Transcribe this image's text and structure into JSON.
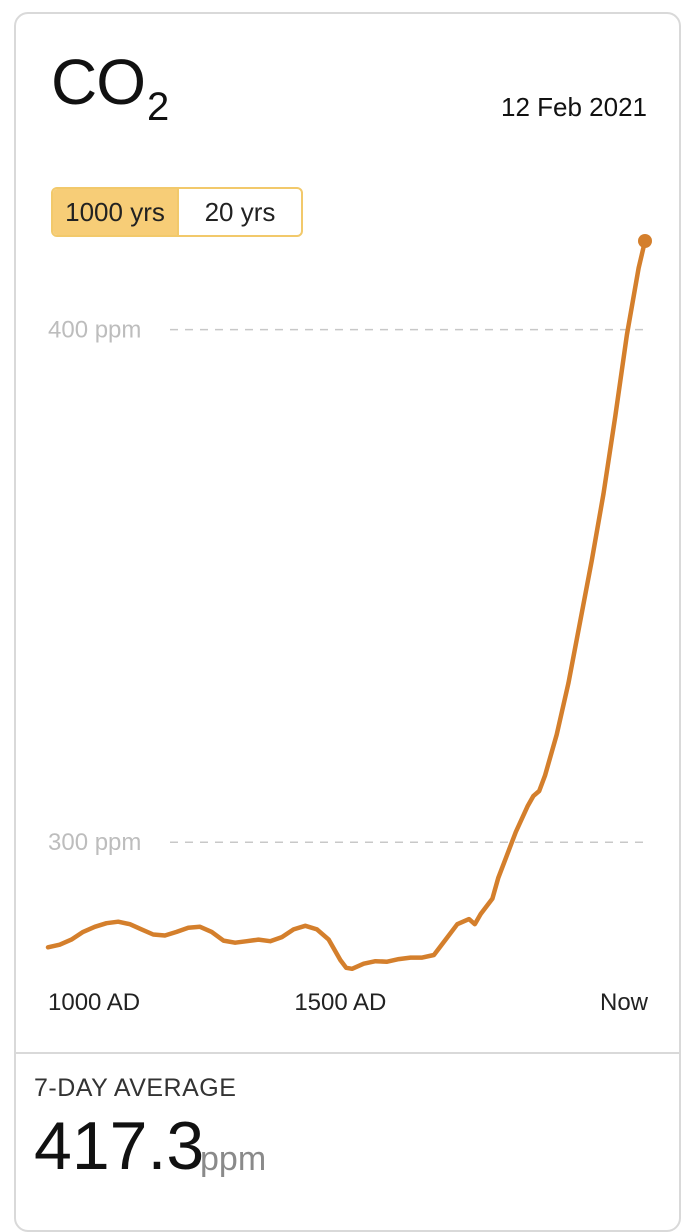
{
  "header": {
    "title_main": "CO",
    "title_sub": "2",
    "date": "12 Feb 2021"
  },
  "range_toggle": {
    "options": [
      "1000 yrs",
      "20 yrs"
    ],
    "selected": "1000 yrs"
  },
  "summary": {
    "label": "7-DAY AVERAGE",
    "value": "417.3",
    "unit": "ppm"
  },
  "colors": {
    "line": "#d47f2c",
    "gridline": "#c8c8c8",
    "tick_text": "#bdbdbd",
    "toggle_active": "#f7cd77"
  },
  "chart_data": {
    "type": "line",
    "title": "",
    "xlabel": "",
    "ylabel": "",
    "x_ticks": [
      {
        "x": 1000,
        "label": "1000 AD"
      },
      {
        "x": 1500,
        "label": "1500 AD"
      },
      {
        "x": 2021,
        "label": "Now"
      }
    ],
    "y_ticks": [
      {
        "y": 300,
        "label": "300 ppm"
      },
      {
        "y": 400,
        "label": "400 ppm"
      }
    ],
    "xlim": [
      1000,
      2021
    ],
    "ylim": [
      278,
      417.3
    ],
    "grid": "dashed horizontal at y ticks",
    "series": [
      {
        "points": [
          [
            1000,
            279.5
          ],
          [
            1020,
            280
          ],
          [
            1040,
            281
          ],
          [
            1060,
            282.5
          ],
          [
            1080,
            283.5
          ],
          [
            1100,
            284.2
          ],
          [
            1120,
            284.5
          ],
          [
            1140,
            284
          ],
          [
            1160,
            283
          ],
          [
            1180,
            282
          ],
          [
            1200,
            281.8
          ],
          [
            1220,
            282.5
          ],
          [
            1240,
            283.3
          ],
          [
            1260,
            283.5
          ],
          [
            1280,
            282.5
          ],
          [
            1300,
            280.8
          ],
          [
            1320,
            280.4
          ],
          [
            1340,
            280.7
          ],
          [
            1360,
            281
          ],
          [
            1380,
            280.7
          ],
          [
            1400,
            281.5
          ],
          [
            1420,
            283
          ],
          [
            1440,
            283.7
          ],
          [
            1460,
            283
          ],
          [
            1480,
            281
          ],
          [
            1500,
            277
          ],
          [
            1510,
            275.5
          ],
          [
            1520,
            275.3
          ],
          [
            1540,
            276.3
          ],
          [
            1560,
            276.8
          ],
          [
            1580,
            276.7
          ],
          [
            1600,
            277.2
          ],
          [
            1620,
            277.5
          ],
          [
            1640,
            277.5
          ],
          [
            1660,
            278
          ],
          [
            1680,
            281
          ],
          [
            1700,
            284
          ],
          [
            1720,
            285
          ],
          [
            1730,
            284
          ],
          [
            1740,
            286
          ],
          [
            1760,
            289
          ],
          [
            1770,
            293
          ],
          [
            1780,
            296
          ],
          [
            1800,
            302
          ],
          [
            1820,
            307
          ],
          [
            1830,
            309
          ],
          [
            1840,
            310
          ],
          [
            1850,
            313
          ],
          [
            1870,
            321
          ],
          [
            1890,
            331
          ],
          [
            1910,
            343
          ],
          [
            1930,
            355
          ],
          [
            1950,
            368
          ],
          [
            1970,
            383
          ],
          [
            1990,
            399
          ],
          [
            2010,
            412
          ],
          [
            2021,
            417.3
          ]
        ]
      }
    ]
  }
}
